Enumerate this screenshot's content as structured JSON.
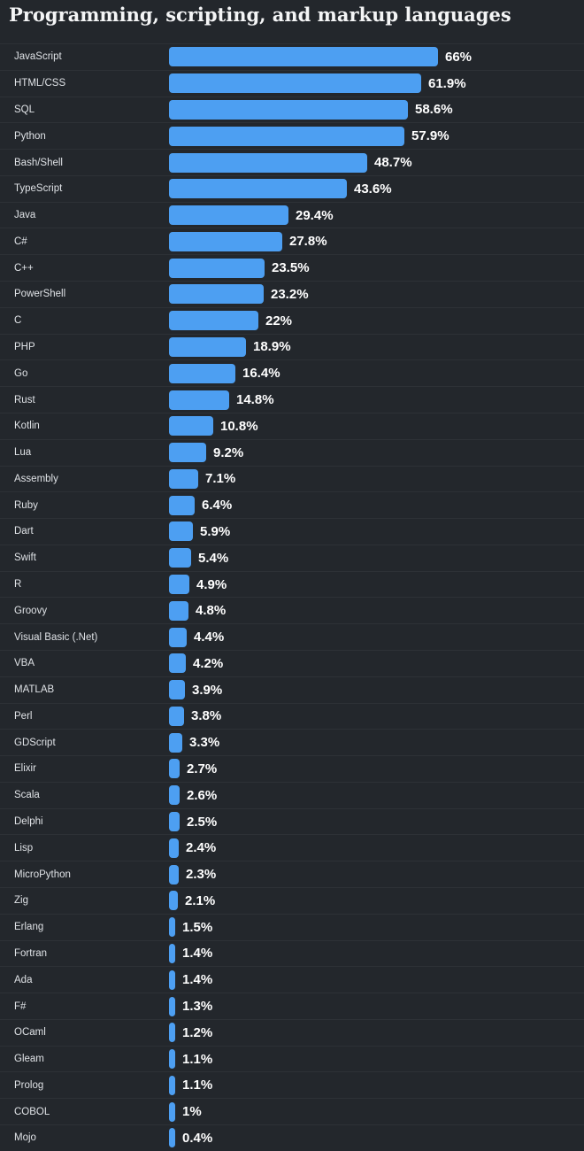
{
  "title": "Programming, scripting, and markup languages",
  "colors": {
    "background": "#23272c",
    "bar": "#4d9ff2",
    "divider": "#2d3136",
    "label_text": "#dfe2e6",
    "value_text": "#ffffff",
    "title_text": "#f4f5f6"
  },
  "chart_data": {
    "type": "bar",
    "orientation": "horizontal",
    "title": "Programming, scripting, and markup languages",
    "value_suffix": "%",
    "xlim": [
      0,
      100
    ],
    "grid": false,
    "legend": false,
    "categories": [
      "JavaScript",
      "HTML/CSS",
      "SQL",
      "Python",
      "Bash/Shell",
      "TypeScript",
      "Java",
      "C#",
      "C++",
      "PowerShell",
      "C",
      "PHP",
      "Go",
      "Rust",
      "Kotlin",
      "Lua",
      "Assembly",
      "Ruby",
      "Dart",
      "Swift",
      "R",
      "Groovy",
      "Visual Basic (.Net)",
      "VBA",
      "MATLAB",
      "Perl",
      "GDScript",
      "Elixir",
      "Scala",
      "Delphi",
      "Lisp",
      "MicroPython",
      "Zig",
      "Erlang",
      "Fortran",
      "Ada",
      "F#",
      "OCaml",
      "Gleam",
      "Prolog",
      "COBOL",
      "Mojo"
    ],
    "values": [
      66,
      61.9,
      58.6,
      57.9,
      48.7,
      43.6,
      29.4,
      27.8,
      23.5,
      23.2,
      22,
      18.9,
      16.4,
      14.8,
      10.8,
      9.2,
      7.1,
      6.4,
      5.9,
      5.4,
      4.9,
      4.8,
      4.4,
      4.2,
      3.9,
      3.8,
      3.3,
      2.7,
      2.6,
      2.5,
      2.4,
      2.3,
      2.1,
      1.5,
      1.4,
      1.4,
      1.3,
      1.2,
      1.1,
      1.1,
      1,
      0.4
    ]
  }
}
